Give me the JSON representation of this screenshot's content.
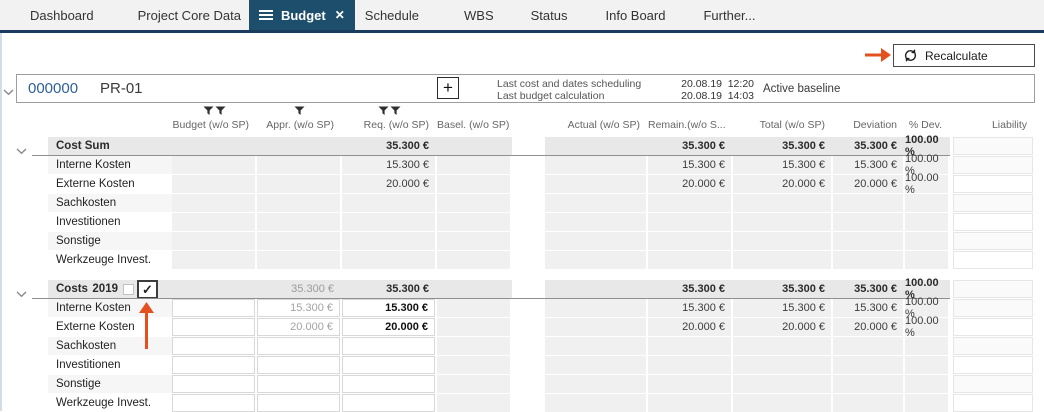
{
  "nav": {
    "tabs": [
      {
        "id": "dashboard",
        "label": "Dashboard",
        "active": false
      },
      {
        "id": "project-core-data",
        "label": "Project Core Data",
        "active": false
      },
      {
        "id": "budget",
        "label": "Budget",
        "active": true
      },
      {
        "id": "schedule",
        "label": "Schedule",
        "active": false
      },
      {
        "id": "wbs",
        "label": "WBS",
        "active": false
      },
      {
        "id": "status",
        "label": "Status",
        "active": false
      },
      {
        "id": "info-board",
        "label": "Info Board",
        "active": false
      },
      {
        "id": "further",
        "label": "Further...",
        "active": false
      }
    ]
  },
  "toolbar": {
    "recalculate": "Recalculate"
  },
  "project": {
    "number": "000000",
    "code": "PR-01",
    "plus_button": "+",
    "sched_label": "Last cost and dates scheduling",
    "sched_date": "20.08.19",
    "sched_time": "12:20",
    "calc_label": "Last budget calculation",
    "calc_date": "20.08.19",
    "calc_time": "14:03",
    "baseline": "Active baseline"
  },
  "table": {
    "headers": {
      "budget": "Budget (w/o SP)",
      "appr": "Appr. (w/o SP)",
      "req": "Req. (w/o SP)",
      "basel": "Basel. (w/o SP)",
      "actual": "Actual (w/o SP)",
      "remain": "Remain.(w/o S...",
      "total": "Total (w/o SP)",
      "deviation": "Deviation",
      "pdev": "% Dev.",
      "liab": "Liability"
    },
    "filters": {
      "budget": 2,
      "appr": 1,
      "req": 2
    },
    "groups": [
      {
        "editable": false,
        "header": {
          "label": "Cost Sum",
          "year": "",
          "has_checkbox": false,
          "cells": {
            "req": "35.300 €",
            "remain": "35.300 €",
            "total": "35.300 €",
            "deviation": "35.300 €",
            "pdev": "100.00 %"
          }
        },
        "rows": [
          {
            "label": "Interne Kosten",
            "cells": {
              "req": "15.300 €",
              "remain": "15.300 €",
              "total": "15.300 €",
              "deviation": "15.300 €",
              "pdev": "100.00 %"
            }
          },
          {
            "label": "Externe Kosten",
            "cells": {
              "req": "20.000 €",
              "remain": "20.000 €",
              "total": "20.000 €",
              "deviation": "20.000 €",
              "pdev": "100.00 %"
            }
          },
          {
            "label": "Sachkosten",
            "cells": {}
          },
          {
            "label": "Investitionen",
            "cells": {}
          },
          {
            "label": "Sonstige",
            "cells": {}
          },
          {
            "label": "Werkzeuge Invest.",
            "cells": {}
          }
        ]
      },
      {
        "editable": true,
        "header": {
          "label": "Costs",
          "year": "2019",
          "has_checkbox": true,
          "year_checkbox_checked": false,
          "confirm_checked": true,
          "confirm_glyph": "✓",
          "cells": {
            "appr": "35.300 €",
            "req": "35.300 €",
            "remain": "35.300 €",
            "total": "35.300 €",
            "deviation": "35.300 €",
            "pdev": "100.00 %"
          }
        },
        "rows": [
          {
            "label": "Interne Kosten",
            "cells": {
              "appr": "15.300 €",
              "req": "15.300 €",
              "remain": "15.300 €",
              "total": "15.300 €",
              "deviation": "15.300 €",
              "pdev": "100.00 %"
            }
          },
          {
            "label": "Externe Kosten",
            "cells": {
              "appr": "20.000 €",
              "req": "20.000 €",
              "remain": "20.000 €",
              "total": "20.000 €",
              "deviation": "20.000 €",
              "pdev": "100.00 %"
            }
          },
          {
            "label": "Sachkosten",
            "cells": {}
          },
          {
            "label": "Investitionen",
            "cells": {}
          },
          {
            "label": "Sonstige",
            "cells": {}
          },
          {
            "label": "Werkzeuge Invest.",
            "cells": {}
          }
        ]
      }
    ]
  },
  "annotations": {
    "arrow_color": "#e4511f"
  }
}
